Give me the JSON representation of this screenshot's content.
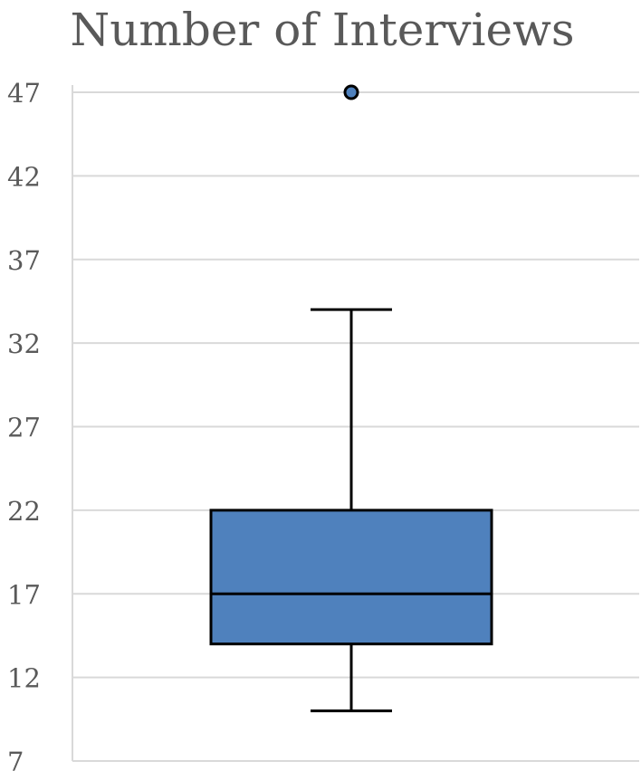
{
  "chart_data": {
    "type": "box",
    "title": "Number of Interviews",
    "xlabel": "",
    "ylabel": "",
    "ylim": [
      7,
      47
    ],
    "yticks": [
      "7",
      "12",
      "17",
      "22",
      "27",
      "32",
      "37",
      "42",
      "47"
    ],
    "grid": true,
    "legend": "none",
    "box": {
      "min": 10,
      "q1": 14,
      "median": 17,
      "q3": 22,
      "max": 34,
      "outliers": [
        47
      ]
    },
    "colors": {
      "box_fill": "#4f81bd",
      "outline": "#000000",
      "grid": "#d9d9d9",
      "text": "#595959"
    }
  }
}
